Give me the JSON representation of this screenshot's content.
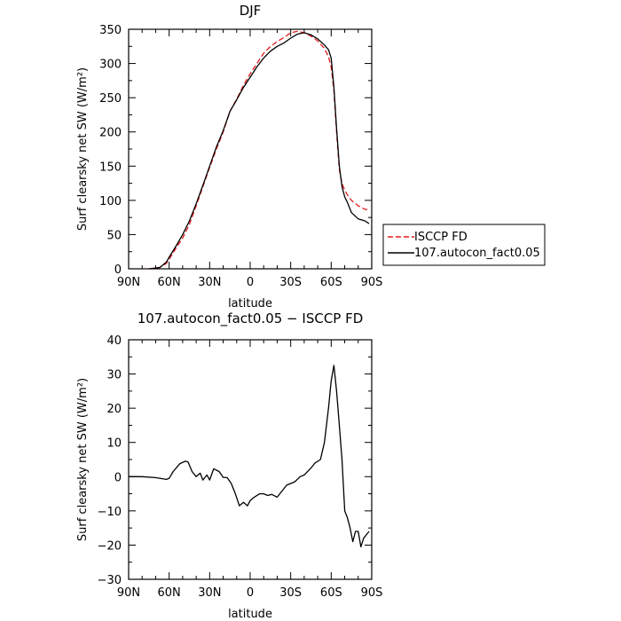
{
  "chart_data": [
    {
      "type": "line",
      "title": "DJF",
      "xlabel": "latitude",
      "ylabel": "Surf clearsky net SW (W/m²)",
      "xlim": [
        -90,
        90
      ],
      "ylim": [
        0,
        350
      ],
      "x_ticks": [
        -90,
        -60,
        -30,
        0,
        30,
        60,
        90
      ],
      "x_tick_labels": [
        "90N",
        "60N",
        "30N",
        "0",
        "30S",
        "60S",
        "90S"
      ],
      "y_ticks": [
        0,
        50,
        100,
        150,
        200,
        250,
        300,
        350
      ],
      "y_tick_labels": [
        "0",
        "50",
        "100",
        "150",
        "200",
        "250",
        "300",
        "350"
      ],
      "legend_position": "right",
      "series": [
        {
          "name": "ISCCP FD",
          "color": "#e41a1c",
          "dash": "dashed",
          "x": [
            -75,
            -70,
            -67,
            -65,
            -62,
            -60,
            -55,
            -50,
            -45,
            -40,
            -35,
            -30,
            -25,
            -20,
            -15,
            -10,
            -5,
            0,
            5,
            10,
            15,
            20,
            25,
            30,
            35,
            40,
            45,
            50,
            55,
            58,
            60,
            62,
            64,
            66,
            68,
            70,
            72,
            75,
            80,
            85,
            88
          ],
          "y": [
            0,
            1,
            2,
            4,
            8,
            14,
            30,
            45,
            65,
            92,
            120,
            148,
            175,
            200,
            230,
            248,
            268,
            285,
            300,
            315,
            325,
            332,
            338,
            345,
            347,
            345,
            340,
            333,
            322,
            310,
            295,
            260,
            200,
            145,
            125,
            115,
            108,
            100,
            92,
            87,
            86
          ]
        },
        {
          "name": "107.autocon_fact0.05",
          "color": "#000000",
          "dash": "solid",
          "x": [
            -75,
            -70,
            -67,
            -65,
            -62,
            -60,
            -55,
            -50,
            -45,
            -40,
            -35,
            -30,
            -25,
            -20,
            -15,
            -10,
            -5,
            0,
            5,
            10,
            15,
            20,
            25,
            30,
            35,
            40,
            45,
            50,
            55,
            58,
            60,
            62,
            64,
            66,
            68,
            70,
            72,
            75,
            80,
            85,
            88
          ],
          "y": [
            0,
            1,
            2,
            5,
            10,
            17,
            33,
            50,
            70,
            95,
            122,
            150,
            178,
            202,
            230,
            247,
            265,
            280,
            295,
            308,
            318,
            325,
            330,
            337,
            343,
            345,
            342,
            336,
            327,
            320,
            308,
            265,
            205,
            150,
            120,
            105,
            97,
            82,
            73,
            70,
            66
          ]
        }
      ]
    },
    {
      "type": "line",
      "title": "107.autocon_fact0.05 − ISCCP FD",
      "xlabel": "latitude",
      "ylabel": "Surf clearsky net SW (W/m²)",
      "xlim": [
        -90,
        90
      ],
      "ylim": [
        -30,
        40
      ],
      "x_ticks": [
        -90,
        -60,
        -30,
        0,
        30,
        60,
        90
      ],
      "x_tick_labels": [
        "90N",
        "60N",
        "30N",
        "0",
        "30S",
        "60S",
        "90S"
      ],
      "y_ticks": [
        -30,
        -20,
        -10,
        0,
        10,
        20,
        30,
        40
      ],
      "y_tick_labels": [
        "−30",
        "−20",
        "−10",
        "0",
        "10",
        "20",
        "30",
        "40"
      ],
      "series": [
        {
          "color": "#000000",
          "dash": "solid",
          "x": [
            -90,
            -80,
            -70,
            -62,
            -60,
            -57,
            -52,
            -48,
            -46,
            -43,
            -40,
            -37,
            -35,
            -32,
            -30,
            -27,
            -23,
            -20,
            -17,
            -14,
            -11,
            -8,
            -5,
            -2,
            0,
            3,
            7,
            10,
            13,
            16,
            20,
            23,
            27,
            30,
            33,
            37,
            40,
            45,
            48,
            52,
            55,
            58,
            60,
            62,
            64,
            66,
            68,
            70,
            72,
            74,
            76,
            78,
            80,
            82,
            84,
            86,
            88
          ],
          "y": [
            0,
            0,
            -0.3,
            -0.8,
            -0.5,
            1.5,
            3.8,
            4.5,
            4.3,
            1.5,
            0,
            1,
            -1,
            0.5,
            -1,
            2.3,
            1.5,
            -0.2,
            -0.3,
            -2,
            -5,
            -8.5,
            -7.5,
            -8.5,
            -7,
            -6,
            -5,
            -5,
            -5.5,
            -5.2,
            -6,
            -4.5,
            -2.5,
            -2,
            -1.5,
            0,
            0.5,
            2.5,
            4,
            5,
            10,
            20,
            28,
            32.5,
            25,
            15,
            5,
            -10,
            -12,
            -15,
            -19,
            -16,
            -16,
            -20.5,
            -18,
            -17,
            -16
          ]
        }
      ]
    }
  ]
}
